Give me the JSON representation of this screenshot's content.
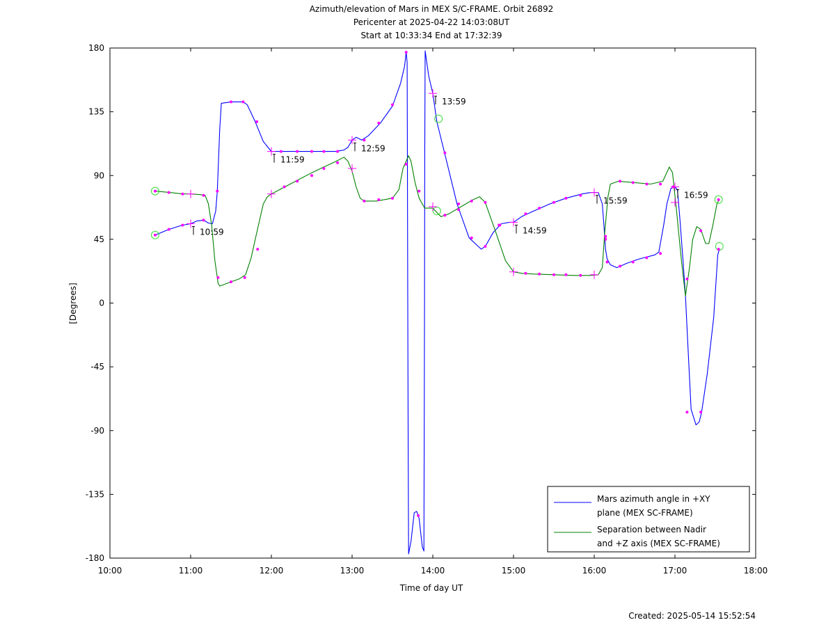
{
  "chart_data": {
    "type": "line",
    "title": "Azimuth/elevation of Mars in MEX S/C-FRAME.  Orbit 26892",
    "subtitle1": "Pericenter at 2025-04-22 14:03:08UT",
    "subtitle2": "Start at 10:33:34 End at 17:32:39",
    "xlabel": "Time of day UT",
    "ylabel": "[Degrees]",
    "footer": "Created: 2025-05-14 15:52:54",
    "xlim": [
      10,
      18
    ],
    "ylim": [
      -180,
      180
    ],
    "x_ticks": [
      {
        "v": 10,
        "label": "10:00"
      },
      {
        "v": 11,
        "label": "11:00"
      },
      {
        "v": 12,
        "label": "12:00"
      },
      {
        "v": 13,
        "label": "13:00"
      },
      {
        "v": 14,
        "label": "14:00"
      },
      {
        "v": 15,
        "label": "15:00"
      },
      {
        "v": 16,
        "label": "16:00"
      },
      {
        "v": 17,
        "label": "17:00"
      },
      {
        "v": 18,
        "label": "18:00"
      }
    ],
    "y_ticks": [
      {
        "v": 180,
        "label": "180"
      },
      {
        "v": 135,
        "label": "135"
      },
      {
        "v": 90,
        "label": "90"
      },
      {
        "v": 45,
        "label": "45"
      },
      {
        "v": 0,
        "label": "0"
      },
      {
        "v": -45,
        "label": "-45"
      },
      {
        "v": -90,
        "label": "-90"
      },
      {
        "v": -135,
        "label": "-135"
      },
      {
        "v": -180,
        "label": "-180"
      }
    ],
    "legend_position": "bottom-right",
    "series": [
      {
        "name_line1": "Mars azimuth angle in +XY",
        "name_line2": "plane (MEX SC-FRAME)",
        "color": "#0000ff",
        "points": [
          [
            10.56,
            48
          ],
          [
            10.73,
            52
          ],
          [
            10.9,
            55
          ],
          [
            11.0,
            56
          ],
          [
            11.08,
            58
          ],
          [
            11.16,
            58.5
          ],
          [
            11.22,
            56.5
          ],
          [
            11.27,
            56
          ],
          [
            11.31,
            65
          ],
          [
            11.33,
            79
          ],
          [
            11.36,
            123
          ],
          [
            11.38,
            141
          ],
          [
            11.5,
            142
          ],
          [
            11.65,
            142
          ],
          [
            11.7,
            140
          ],
          [
            11.8,
            128
          ],
          [
            11.9,
            114
          ],
          [
            12.0,
            107
          ],
          [
            12.2,
            107
          ],
          [
            12.5,
            107
          ],
          [
            12.8,
            107
          ],
          [
            12.9,
            108
          ],
          [
            12.95,
            110
          ],
          [
            13.0,
            115
          ],
          [
            13.05,
            117
          ],
          [
            13.12,
            115
          ],
          [
            13.2,
            118
          ],
          [
            13.35,
            127
          ],
          [
            13.5,
            139
          ],
          [
            13.6,
            155
          ],
          [
            13.65,
            167
          ],
          [
            13.67,
            177
          ],
          [
            13.682,
            170
          ],
          [
            13.685,
            100
          ],
          [
            13.69,
            0
          ],
          [
            13.695,
            -100
          ],
          [
            13.7,
            -177
          ],
          [
            13.73,
            -168
          ],
          [
            13.77,
            -148
          ],
          [
            13.8,
            -147
          ],
          [
            13.83,
            -152
          ],
          [
            13.87,
            -172
          ],
          [
            13.89,
            -175
          ],
          [
            13.893,
            -100
          ],
          [
            13.897,
            0
          ],
          [
            13.9,
            100
          ],
          [
            13.905,
            178
          ],
          [
            13.92,
            172
          ],
          [
            13.95,
            160
          ],
          [
            14.0,
            148
          ],
          [
            14.05,
            128
          ],
          [
            14.15,
            105
          ],
          [
            14.3,
            70
          ],
          [
            14.45,
            46
          ],
          [
            14.6,
            38
          ],
          [
            14.65,
            40
          ],
          [
            14.75,
            50
          ],
          [
            14.85,
            56
          ],
          [
            14.95,
            57
          ],
          [
            15.0,
            57
          ],
          [
            15.1,
            61
          ],
          [
            15.25,
            65
          ],
          [
            15.45,
            70
          ],
          [
            15.65,
            74
          ],
          [
            15.85,
            77
          ],
          [
            15.95,
            78
          ],
          [
            16.05,
            78
          ],
          [
            16.1,
            70
          ],
          [
            16.12,
            55
          ],
          [
            16.14,
            38
          ],
          [
            16.16,
            31
          ],
          [
            16.2,
            27
          ],
          [
            16.28,
            25
          ],
          [
            16.4,
            28
          ],
          [
            16.55,
            31
          ],
          [
            16.75,
            34
          ],
          [
            16.8,
            36
          ],
          [
            16.86,
            55
          ],
          [
            16.9,
            70
          ],
          [
            16.95,
            81
          ],
          [
            17.0,
            82
          ],
          [
            17.03,
            80
          ],
          [
            17.06,
            60
          ],
          [
            17.1,
            30
          ],
          [
            17.13,
            5
          ],
          [
            17.16,
            -30
          ],
          [
            17.2,
            -75
          ],
          [
            17.26,
            -86
          ],
          [
            17.3,
            -84
          ],
          [
            17.33,
            -77
          ],
          [
            17.4,
            -50
          ],
          [
            17.48,
            -10
          ],
          [
            17.53,
            34
          ],
          [
            17.55,
            38
          ]
        ],
        "markers": [
          [
            10.56,
            48
          ],
          [
            10.73,
            52
          ],
          [
            10.9,
            55
          ],
          [
            11.16,
            58.5
          ],
          [
            11.33,
            79
          ],
          [
            11.5,
            142
          ],
          [
            11.65,
            142
          ],
          [
            11.82,
            128
          ],
          [
            12.12,
            107
          ],
          [
            12.32,
            107
          ],
          [
            12.5,
            107
          ],
          [
            12.65,
            107
          ],
          [
            12.82,
            107
          ],
          [
            13.15,
            115
          ],
          [
            13.33,
            127
          ],
          [
            13.5,
            140
          ],
          [
            13.67,
            177
          ],
          [
            13.82,
            -150
          ],
          [
            14.15,
            106
          ],
          [
            14.32,
            70
          ],
          [
            14.48,
            46
          ],
          [
            14.65,
            40
          ],
          [
            14.83,
            55
          ],
          [
            15.15,
            63
          ],
          [
            15.32,
            67
          ],
          [
            15.5,
            71
          ],
          [
            15.65,
            74
          ],
          [
            15.83,
            76
          ],
          [
            16.14,
            45
          ],
          [
            16.16,
            29
          ],
          [
            16.32,
            26
          ],
          [
            16.48,
            29
          ],
          [
            16.65,
            32
          ],
          [
            16.82,
            35
          ],
          [
            16.98,
            82
          ],
          [
            17.15,
            -77
          ],
          [
            17.32,
            -77
          ],
          [
            17.54,
            38
          ]
        ],
        "crosses": [
          [
            11.0,
            56
          ],
          [
            12.0,
            107
          ],
          [
            13.0,
            115
          ],
          [
            14.0,
            148
          ],
          [
            15.0,
            57
          ],
          [
            16.0,
            78
          ],
          [
            17.0,
            82
          ]
        ],
        "circles": [
          [
            10.56,
            48
          ],
          [
            14.07,
            130
          ],
          [
            17.55,
            40
          ]
        ]
      },
      {
        "name_line1": "Separation between Nadir",
        "name_line2": "and +Z axis (MEX SC-FRAME)",
        "color": "#008000",
        "points": [
          [
            10.56,
            79
          ],
          [
            10.75,
            78
          ],
          [
            10.9,
            77
          ],
          [
            11.0,
            77
          ],
          [
            11.12,
            76.5
          ],
          [
            11.18,
            76
          ],
          [
            11.22,
            70
          ],
          [
            11.26,
            55
          ],
          [
            11.3,
            30
          ],
          [
            11.34,
            14
          ],
          [
            11.36,
            12
          ],
          [
            11.5,
            15
          ],
          [
            11.6,
            17
          ],
          [
            11.68,
            20
          ],
          [
            11.75,
            32
          ],
          [
            11.82,
            50
          ],
          [
            11.9,
            70
          ],
          [
            11.95,
            75
          ],
          [
            12.0,
            77
          ],
          [
            12.1,
            80
          ],
          [
            12.3,
            86
          ],
          [
            12.5,
            92
          ],
          [
            12.65,
            96
          ],
          [
            12.8,
            100
          ],
          [
            12.9,
            103
          ],
          [
            12.95,
            100
          ],
          [
            13.0,
            93
          ],
          [
            13.05,
            82
          ],
          [
            13.1,
            74
          ],
          [
            13.15,
            72
          ],
          [
            13.3,
            72
          ],
          [
            13.5,
            74
          ],
          [
            13.58,
            80
          ],
          [
            13.63,
            95
          ],
          [
            13.7,
            104
          ],
          [
            13.73,
            100
          ],
          [
            13.78,
            85
          ],
          [
            13.83,
            74
          ],
          [
            13.9,
            67
          ],
          [
            13.95,
            67
          ],
          [
            14.0,
            67
          ],
          [
            14.1,
            61
          ],
          [
            14.2,
            63
          ],
          [
            14.35,
            68
          ],
          [
            14.5,
            73
          ],
          [
            14.58,
            75
          ],
          [
            14.65,
            71
          ],
          [
            14.78,
            50
          ],
          [
            14.9,
            30
          ],
          [
            15.0,
            22
          ],
          [
            15.1,
            21
          ],
          [
            15.25,
            20.5
          ],
          [
            15.5,
            20
          ],
          [
            15.75,
            19.5
          ],
          [
            15.95,
            19.5
          ],
          [
            16.05,
            20
          ],
          [
            16.1,
            25
          ],
          [
            16.13,
            50
          ],
          [
            16.17,
            75
          ],
          [
            16.2,
            84
          ],
          [
            16.3,
            86
          ],
          [
            16.5,
            85
          ],
          [
            16.7,
            84
          ],
          [
            16.85,
            86
          ],
          [
            16.93,
            96
          ],
          [
            16.97,
            92
          ],
          [
            17.02,
            65
          ],
          [
            17.08,
            30
          ],
          [
            17.13,
            5
          ],
          [
            17.18,
            25
          ],
          [
            17.22,
            45
          ],
          [
            17.27,
            54
          ],
          [
            17.32,
            52
          ],
          [
            17.38,
            42
          ],
          [
            17.42,
            42
          ],
          [
            17.47,
            55
          ],
          [
            17.52,
            70
          ],
          [
            17.55,
            73
          ]
        ],
        "markers": [
          [
            10.56,
            79
          ],
          [
            10.73,
            78
          ],
          [
            10.9,
            77
          ],
          [
            11.16,
            76
          ],
          [
            11.34,
            18
          ],
          [
            11.5,
            15
          ],
          [
            11.67,
            18
          ],
          [
            11.83,
            38
          ],
          [
            12.16,
            82
          ],
          [
            12.32,
            86
          ],
          [
            12.5,
            90
          ],
          [
            12.65,
            95
          ],
          [
            12.82,
            99
          ],
          [
            13.15,
            72
          ],
          [
            13.33,
            73
          ],
          [
            13.5,
            74
          ],
          [
            13.67,
            98
          ],
          [
            13.83,
            79
          ],
          [
            14.15,
            62
          ],
          [
            14.32,
            66
          ],
          [
            14.48,
            72
          ],
          [
            14.65,
            71
          ],
          [
            14.82,
            55
          ],
          [
            15.15,
            21
          ],
          [
            15.32,
            20.5
          ],
          [
            15.5,
            20
          ],
          [
            15.65,
            20
          ],
          [
            15.83,
            19.5
          ],
          [
            16.14,
            47
          ],
          [
            16.32,
            86
          ],
          [
            16.48,
            85
          ],
          [
            16.65,
            84
          ],
          [
            16.82,
            84
          ],
          [
            16.98,
            82
          ],
          [
            17.15,
            17
          ],
          [
            17.32,
            51
          ],
          [
            17.54,
            73
          ]
        ],
        "crosses": [
          [
            11.0,
            77
          ],
          [
            12.0,
            77
          ],
          [
            13.0,
            95
          ],
          [
            14.0,
            68
          ],
          [
            15.0,
            22
          ],
          [
            16.0,
            20
          ],
          [
            17.0,
            71
          ]
        ],
        "circles": [
          [
            10.56,
            79
          ],
          [
            14.05,
            65
          ],
          [
            17.54,
            73
          ]
        ]
      }
    ],
    "annotations": [
      {
        "x": 11.0,
        "y": 56,
        "label": "10:59"
      },
      {
        "x": 12.0,
        "y": 107,
        "label": "11:59"
      },
      {
        "x": 13.0,
        "y": 115,
        "label": "12:59"
      },
      {
        "x": 14.0,
        "y": 148,
        "label": "13:59"
      },
      {
        "x": 15.0,
        "y": 57,
        "label": "14:59"
      },
      {
        "x": 16.0,
        "y": 78,
        "label": "15:59"
      },
      {
        "x": 17.0,
        "y": 82,
        "label": "16:59"
      }
    ]
  }
}
